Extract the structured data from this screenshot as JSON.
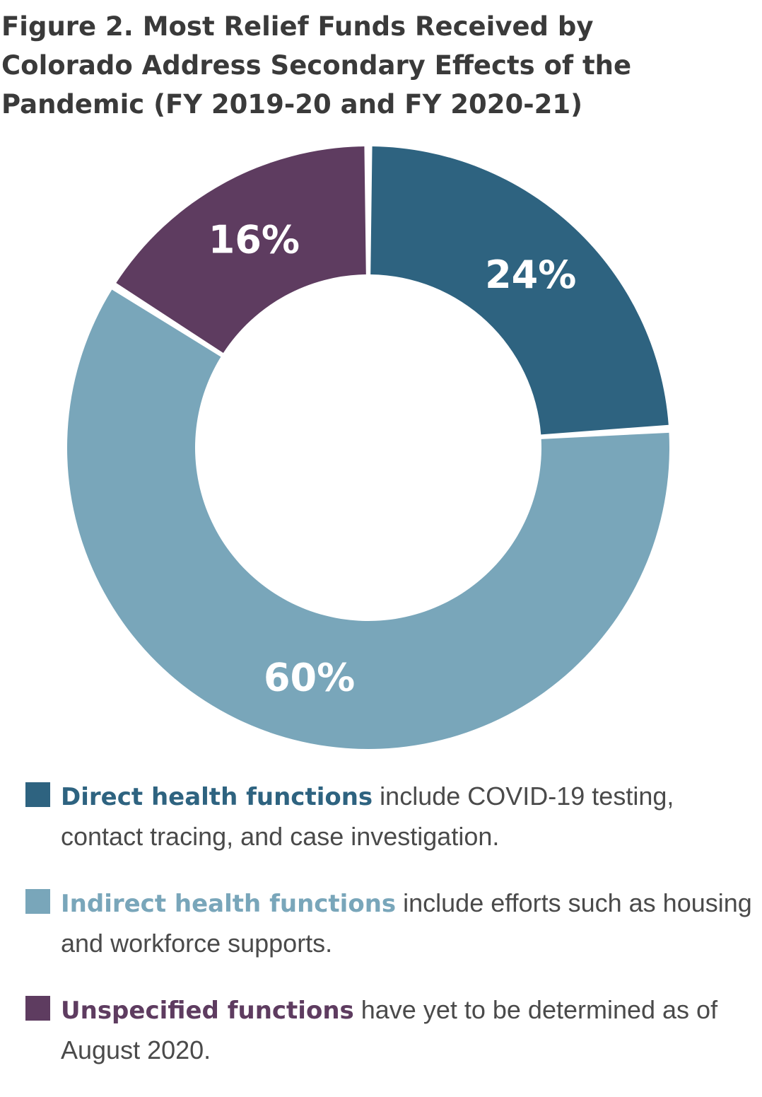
{
  "title": "Figure 2. Most Relief Funds Received by Colorado Address Secondary Effects of the Pandemic (FY 2019-20 and FY 2020-21)",
  "colors": {
    "direct": "#2e6380",
    "indirect": "#79a6ba",
    "unspecified": "#5e3c60",
    "title_text": "#3a3a3a",
    "body_text": "#4a4a4a"
  },
  "chart_data": {
    "type": "pie",
    "title": "Figure 2. Most Relief Funds Received by Colorado Address Secondary Effects of the Pandemic (FY 2019-20 and FY 2020-21)",
    "style": "donut",
    "unit": "%",
    "categories": [
      "Direct health functions",
      "Indirect health functions",
      "Unspecified functions"
    ],
    "values": [
      24,
      60,
      16
    ],
    "data_labels": [
      "24%",
      "60%",
      "16%"
    ],
    "colors": [
      "#2e6380",
      "#79a6ba",
      "#5e3c60"
    ],
    "legend_position": "bottom"
  },
  "legend": [
    {
      "term": "Direct health functions",
      "description": " include COVID-19 testing, contact tracing, and case investigation.",
      "color": "#2e6380"
    },
    {
      "term": "Indirect health functions",
      "description": " include efforts such as housing and workforce supports.",
      "color": "#79a6ba"
    },
    {
      "term": "Unspecified functions",
      "description": " have yet to be determined as of August 2020.",
      "color": "#5e3c60"
    }
  ]
}
